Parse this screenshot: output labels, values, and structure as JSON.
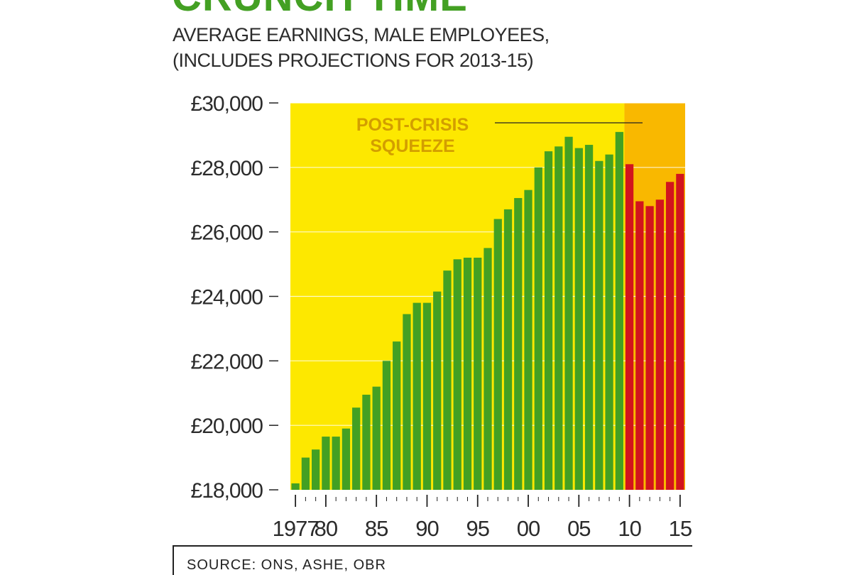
{
  "header": {
    "title": "CRUNCH TIME",
    "subtitle_line1": "AVERAGE EARNINGS, MALE EMPLOYEES,",
    "subtitle_line2": "(INCLUDES PROJECTIONS FOR 2013-15)"
  },
  "footer": {
    "source": "SOURCE: ONS, ASHE, OBR"
  },
  "colors": {
    "background_main": "#fde800",
    "background_crisis": "#f9b800",
    "bar_green": "#43a023",
    "bar_red": "#d2141d",
    "annotation": "#d39e00",
    "title": "#43a023"
  },
  "chart_data": {
    "type": "bar",
    "title": "CRUNCH TIME",
    "subtitle": "AVERAGE EARNINGS, MALE EMPLOYEES, (INCLUDES PROJECTIONS FOR 2013-15)",
    "xlabel": "",
    "ylabel": "",
    "ylim": [
      18000,
      30000
    ],
    "y_ticks": [
      "£18,000",
      "£20,000",
      "£22,000",
      "£24,000",
      "£26,000",
      "£28,000",
      "£30,000"
    ],
    "y_tick_values": [
      18000,
      20000,
      22000,
      24000,
      26000,
      28000,
      30000
    ],
    "x_tick_labels": [
      "1977",
      "80",
      "85",
      "90",
      "95",
      "00",
      "05",
      "10",
      "15"
    ],
    "x_tick_years": [
      1977,
      1980,
      1985,
      1990,
      1995,
      2000,
      2005,
      2010,
      2015
    ],
    "grid": true,
    "annotation": {
      "line1": "POST-CRISIS",
      "line2": "SQUEEZE"
    },
    "crisis_start_year": 2010,
    "categories": [
      1977,
      1978,
      1979,
      1980,
      1981,
      1982,
      1983,
      1984,
      1985,
      1986,
      1987,
      1988,
      1989,
      1990,
      1991,
      1992,
      1993,
      1994,
      1995,
      1996,
      1997,
      1998,
      1999,
      2000,
      2001,
      2002,
      2003,
      2004,
      2005,
      2006,
      2007,
      2008,
      2009,
      2010,
      2011,
      2012,
      2013,
      2014,
      2015
    ],
    "values": [
      18200,
      19000,
      19250,
      19650,
      19650,
      19900,
      20550,
      20950,
      21200,
      22000,
      22600,
      23450,
      23800,
      23800,
      24150,
      24800,
      25150,
      25200,
      25200,
      25500,
      26400,
      26700,
      27050,
      27300,
      28000,
      28500,
      28650,
      28950,
      28600,
      28700,
      28200,
      28400,
      29100,
      28100,
      26950,
      26800,
      27000,
      27550,
      27800
    ],
    "series": [
      {
        "name": "",
        "color": "#43a023",
        "years": [
          1977,
          2009
        ]
      },
      {
        "name": "",
        "color": "#d2141d",
        "years": [
          2010,
          2015
        ]
      }
    ]
  }
}
